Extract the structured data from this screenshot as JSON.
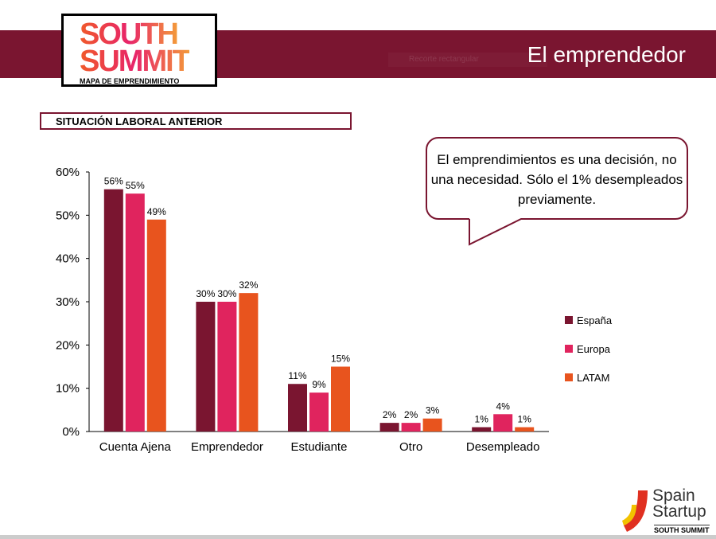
{
  "header": {
    "title": "El emprendedor",
    "ghost_text": "Recorte rectangular"
  },
  "logo": {
    "line1": "SOUTH",
    "line2": "SUMMIT",
    "subtitle": "MAPA DE EMPRENDIMIENTO"
  },
  "section_label": "SITUACIÓN LABORAL ANTERIOR",
  "callout": "El emprendimientos es una decisión, no una necesidad. Sólo el 1% desempleados previamente.",
  "footer_logo": {
    "line1": "Spain",
    "line2": "Startup",
    "line3": "SOUTH SUMMIT"
  },
  "chart_data": {
    "type": "bar",
    "categories": [
      "Cuenta Ajena",
      "Emprendedor",
      "Estudiante",
      "Otro",
      "Desempleado"
    ],
    "series": [
      {
        "name": "España",
        "color": "#7a1530",
        "values": [
          56,
          30,
          11,
          2,
          1
        ]
      },
      {
        "name": "Europa",
        "color": "#e0245e",
        "values": [
          55,
          30,
          9,
          2,
          4
        ]
      },
      {
        "name": "LATAM",
        "color": "#e8541e",
        "values": [
          49,
          32,
          15,
          3,
          1
        ]
      }
    ],
    "ylim": [
      0,
      60
    ],
    "yticks": [
      "0%",
      "10%",
      "20%",
      "30%",
      "40%",
      "50%",
      "60%"
    ],
    "legend": "right",
    "grid": false,
    "value_suffix": "%"
  }
}
